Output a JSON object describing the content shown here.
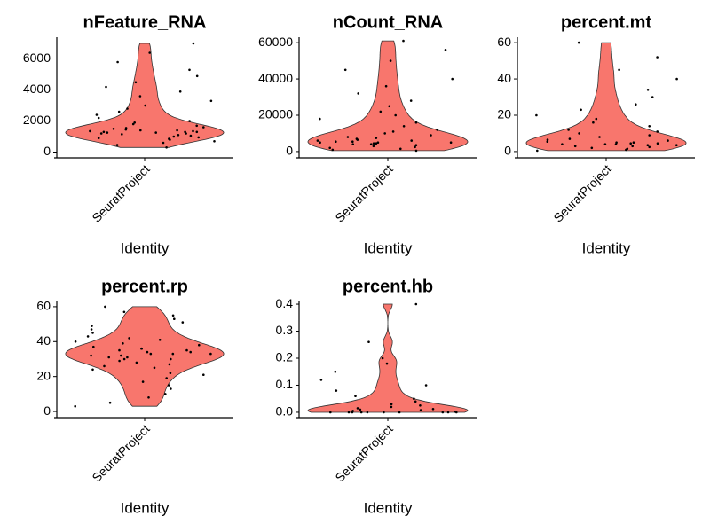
{
  "chart_data": [
    {
      "type": "violin",
      "title": "nFeature_RNA",
      "categories": [
        "SeuratProject"
      ],
      "x_label": "Identity",
      "color": "#F8766D",
      "values": [
        300,
        450,
        600,
        700,
        800,
        850,
        900,
        950,
        1000,
        1050,
        1100,
        1150,
        1200,
        1200,
        1250,
        1250,
        1300,
        1300,
        1300,
        1350,
        1350,
        1400,
        1400,
        1450,
        1500,
        1550,
        1600,
        1700,
        1800,
        1900,
        2000,
        2200,
        2400,
        2600,
        2800,
        3000,
        3300,
        3600,
        3900,
        4200,
        4500,
        4900,
        5300,
        5800,
        6400,
        7000
      ],
      "ylim": [
        -200,
        7400
      ],
      "yticks": [
        0,
        2000,
        4000,
        6000
      ]
    },
    {
      "type": "violin",
      "title": "nCount_RNA",
      "categories": [
        "SeuratProject"
      ],
      "x_label": "Identity",
      "color": "#F8766D",
      "values": [
        500,
        1000,
        1500,
        2000,
        2500,
        3000,
        3500,
        4000,
        4000,
        4500,
        4500,
        5000,
        5000,
        5000,
        5500,
        5500,
        6000,
        6000,
        6500,
        7000,
        7500,
        8000,
        9000,
        10000,
        11000,
        12000,
        14000,
        16000,
        18000,
        20000,
        22000,
        25000,
        28000,
        32000,
        36000,
        40000,
        45000,
        50000,
        56000,
        61000
      ],
      "ylim": [
        -2000,
        63000
      ],
      "yticks": [
        0,
        20000,
        40000,
        60000
      ]
    },
    {
      "type": "violin",
      "title": "percent.mt",
      "categories": [
        "SeuratProject"
      ],
      "x_label": "Identity",
      "color": "#F8766D",
      "values": [
        0.5,
        1,
        1.5,
        2,
        2.5,
        3,
        3,
        3.5,
        3.5,
        4,
        4,
        4,
        4.5,
        4.5,
        5,
        5,
        5.5,
        6,
        6.5,
        7,
        8,
        9,
        10,
        11,
        12,
        14,
        16,
        18,
        20,
        23,
        26,
        30,
        34,
        40,
        45,
        52,
        60
      ],
      "ylim": [
        -2,
        63
      ],
      "yticks": [
        0,
        20,
        40,
        60
      ]
    },
    {
      "type": "violin",
      "title": "percent.rp",
      "categories": [
        "SeuratProject"
      ],
      "x_label": "Identity",
      "color": "#F8766D",
      "values": [
        3,
        5,
        8,
        10,
        13,
        15,
        17,
        19,
        21,
        22,
        24,
        25,
        26,
        27,
        28,
        29,
        30,
        30,
        31,
        31,
        32,
        32,
        33,
        33,
        33,
        34,
        34,
        35,
        35,
        36,
        36,
        37,
        38,
        39,
        40,
        41,
        42,
        43,
        45,
        47,
        49,
        51,
        53,
        55,
        57,
        60
      ],
      "ylim": [
        -2,
        63
      ],
      "yticks": [
        0,
        20,
        40,
        60
      ]
    },
    {
      "type": "violin",
      "title": "percent.hb",
      "categories": [
        "SeuratProject"
      ],
      "x_label": "Identity",
      "color": "#F8766D",
      "values": [
        0,
        0,
        0,
        0,
        0,
        0,
        0,
        0,
        0,
        0,
        0.002,
        0.005,
        0.008,
        0.01,
        0.012,
        0.015,
        0.02,
        0.025,
        0.03,
        0.04,
        0.05,
        0.06,
        0.08,
        0.1,
        0.12,
        0.15,
        0.18,
        0.2,
        0.26,
        0.4
      ],
      "ylim": [
        -0.01,
        0.41
      ],
      "yticks": [
        {
          "value": 0,
          "label": "0.0"
        },
        0.1,
        0.2,
        0.3,
        0.4
      ]
    }
  ]
}
